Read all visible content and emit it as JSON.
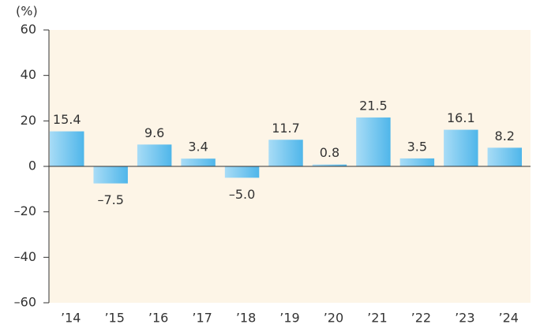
{
  "chart_data": {
    "type": "bar",
    "y_unit_label": "(%)",
    "categories": [
      "’14",
      "’15",
      "’16",
      "’17",
      "’18",
      "’19",
      "’20",
      "’21",
      "’22",
      "’23",
      "’24"
    ],
    "values": [
      15.4,
      -7.5,
      9.6,
      3.4,
      -5.0,
      11.7,
      0.8,
      21.5,
      3.5,
      16.1,
      8.2
    ],
    "value_labels": [
      "15.4",
      "–7.5",
      "9.6",
      "3.4",
      "–5.0",
      "11.7",
      "0.8",
      "21.5",
      "3.5",
      "16.1",
      "8.2"
    ],
    "color": "#4fb6ea",
    "ylim": [
      -60,
      60
    ],
    "yticks": [
      {
        "value": -60,
        "label": "–60"
      },
      {
        "value": -40,
        "label": "–40"
      },
      {
        "value": -20,
        "label": "–20"
      },
      0,
      20,
      40,
      60
    ]
  }
}
